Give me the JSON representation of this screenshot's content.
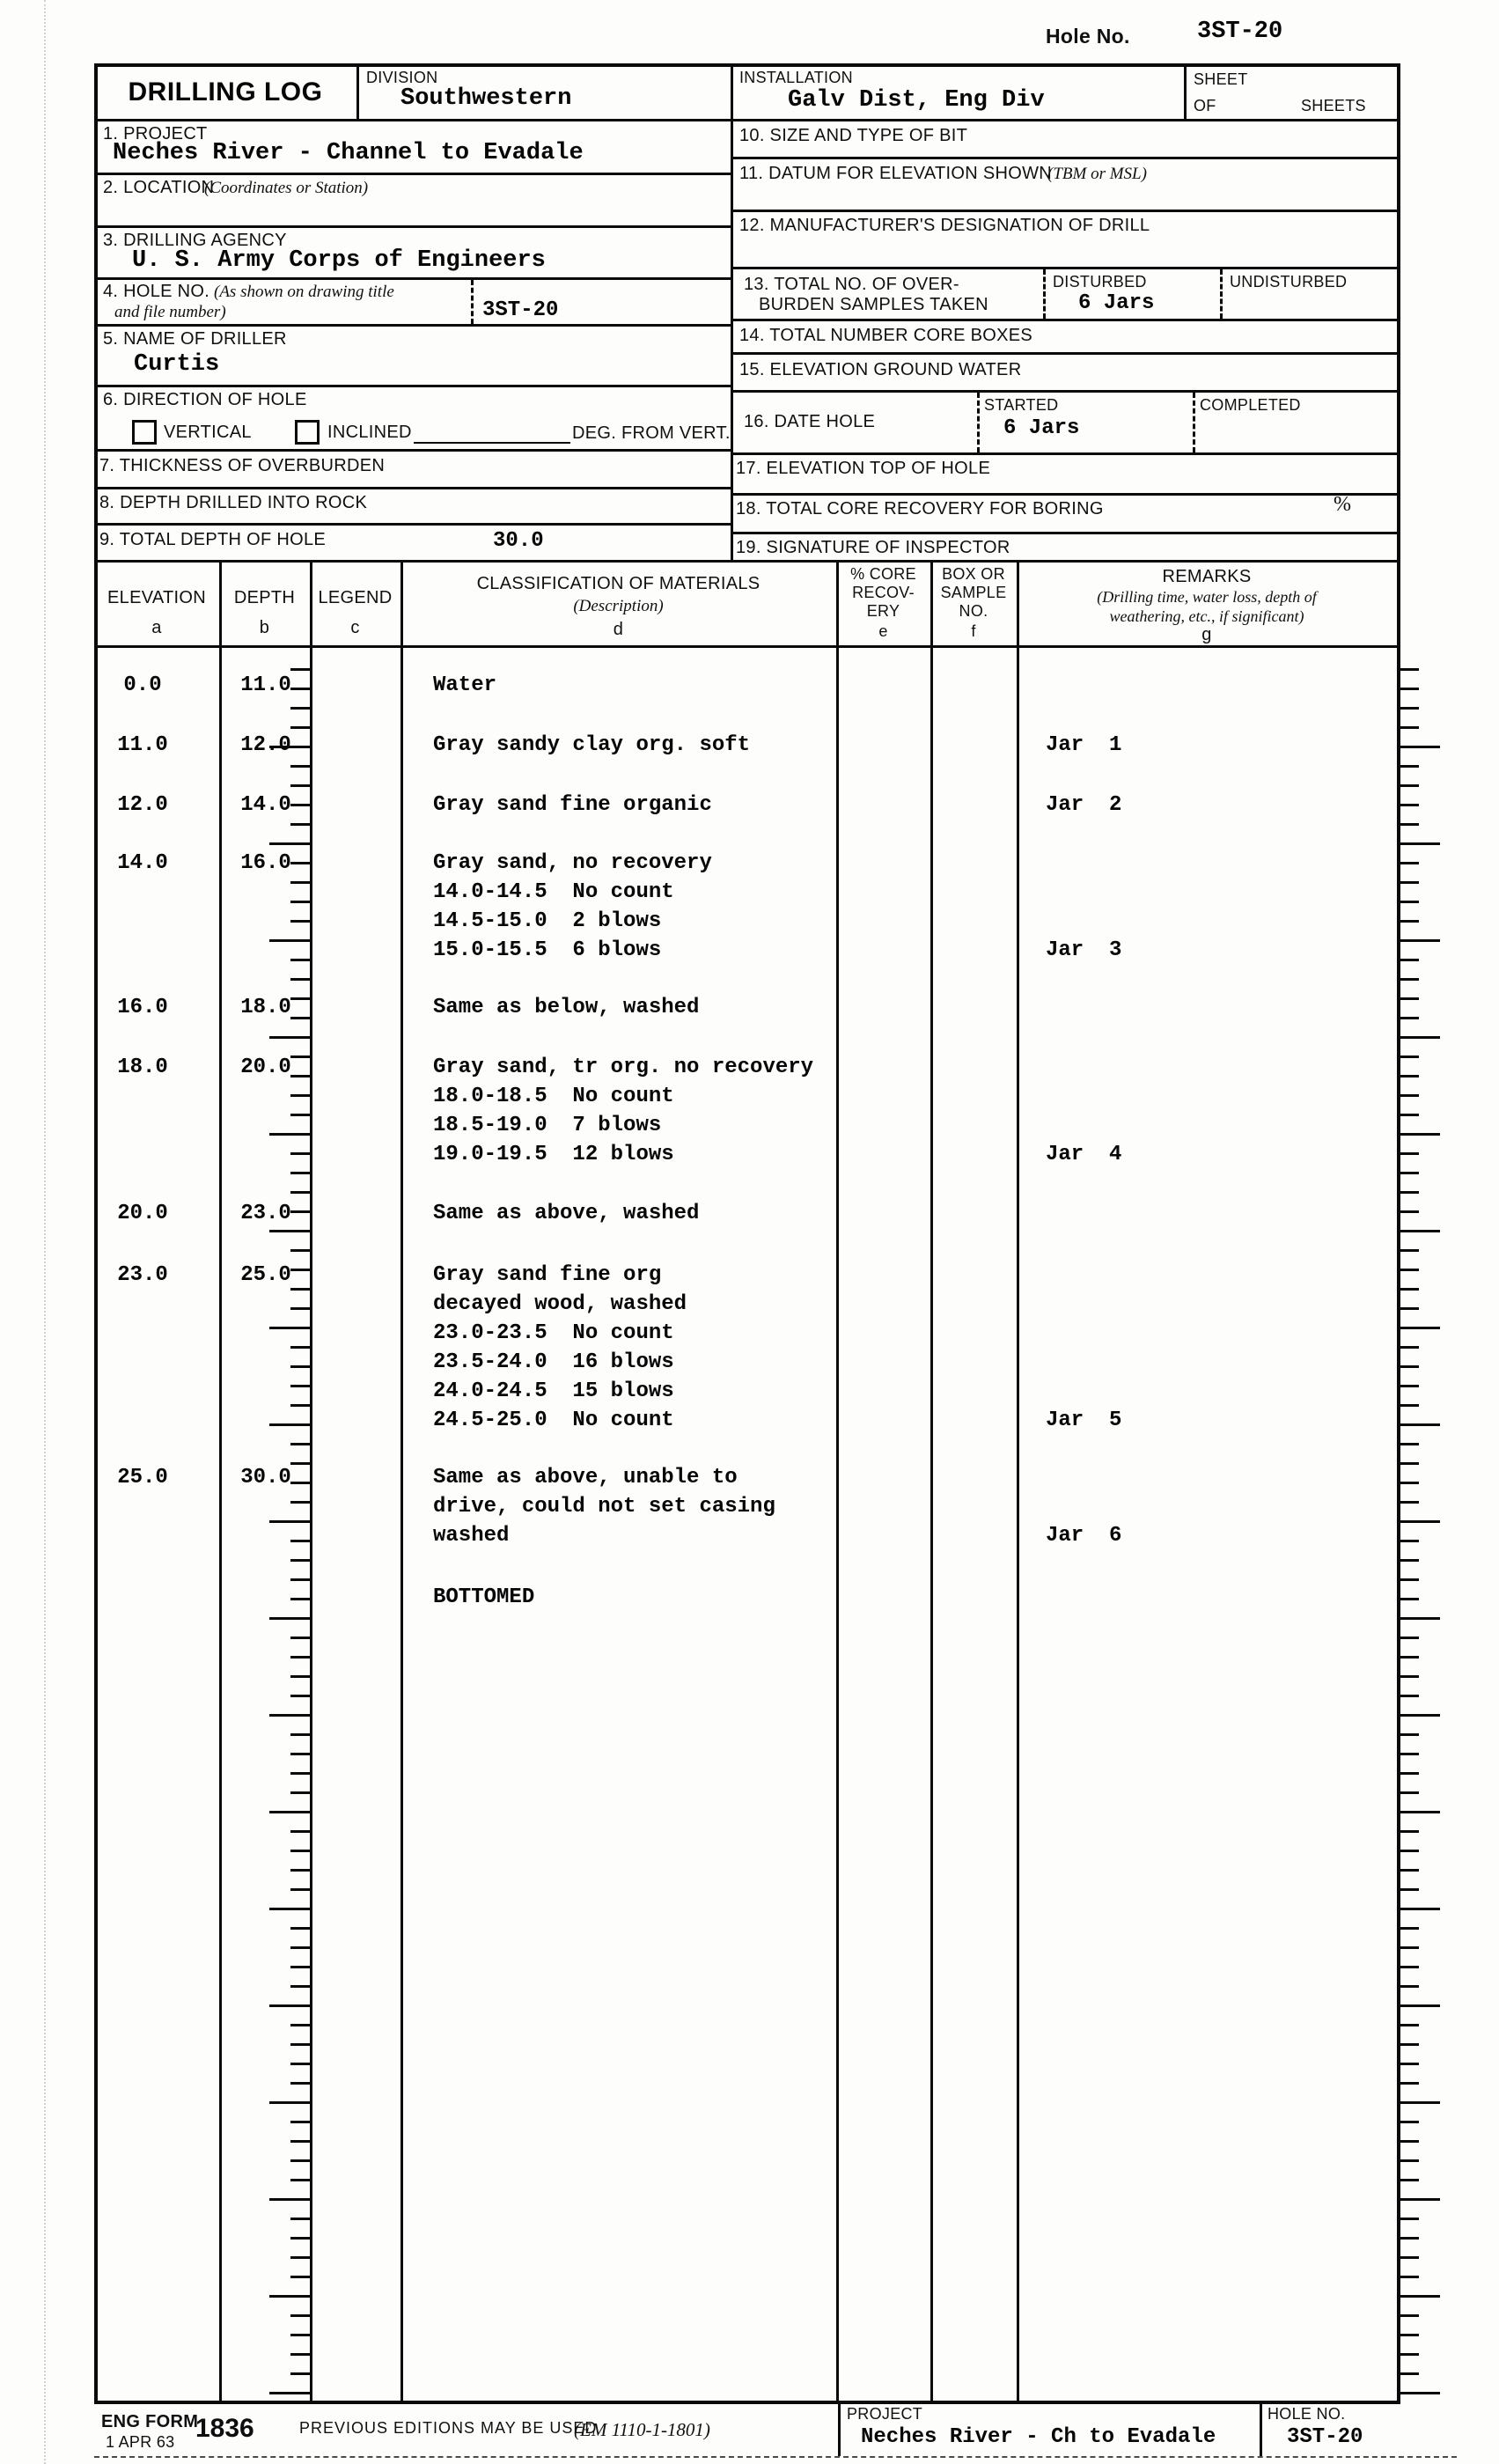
{
  "page": {
    "hole_no_label": "Hole No.",
    "hole_no": "3ST-20"
  },
  "header": {
    "form_title": "DRILLING LOG",
    "division_label": "DIVISION",
    "division": "Southwestern",
    "installation_label": "INSTALLATION",
    "installation": "Galv Dist, Eng Div",
    "sheet_label": "SHEET",
    "of_label": "OF",
    "sheets_label": "SHEETS"
  },
  "fields": {
    "project": {
      "label": "1. PROJECT",
      "value": "Neches River - Channel to Evadale"
    },
    "location": {
      "label": "2. LOCATION",
      "hint": "(Coordinates or Station)"
    },
    "agency": {
      "label": "3. DRILLING AGENCY",
      "value": "U. S. Army Corps of Engineers"
    },
    "hole": {
      "label": "4. HOLE NO.",
      "hint1": "(As shown on drawing title",
      "hint2": "and file number)",
      "value": "3ST-20"
    },
    "driller": {
      "label": "5. NAME OF DRILLER",
      "value": "Curtis"
    },
    "direction": {
      "label": "6. DIRECTION OF HOLE",
      "vertical": "VERTICAL",
      "inclined": "INCLINED",
      "deg": "DEG. FROM VERT."
    },
    "overburden": {
      "label": "7. THICKNESS OF OVERBURDEN"
    },
    "rock": {
      "label": "8. DEPTH DRILLED INTO ROCK"
    },
    "total_depth": {
      "label": "9. TOTAL DEPTH OF HOLE",
      "value": "30.0"
    },
    "bit": {
      "label": "10. SIZE AND TYPE OF BIT"
    },
    "datum": {
      "label": "11. DATUM FOR ELEVATION SHOWN",
      "hint": "(TBM or MSL)"
    },
    "drill": {
      "label": "12. MANUFACTURER'S DESIGNATION OF DRILL"
    },
    "samples": {
      "label1": "13. TOTAL NO. OF OVER-",
      "label2": "BURDEN SAMPLES TAKEN",
      "disturbed_label": "DISTURBED",
      "disturbed_value": "6 Jars",
      "undisturbed_label": "UNDISTURBED"
    },
    "core_boxes": {
      "label": "14. TOTAL NUMBER CORE BOXES"
    },
    "ground_water": {
      "label": "15. ELEVATION GROUND WATER"
    },
    "date_hole": {
      "label": "16. DATE HOLE",
      "started_label": "STARTED",
      "started_value": "6 Jars",
      "completed_label": "COMPLETED"
    },
    "top_of_hole": {
      "label": "17. ELEVATION TOP OF HOLE"
    },
    "recovery": {
      "label": "18. TOTAL CORE RECOVERY FOR BORING",
      "percent": "%"
    },
    "inspector": {
      "label": "19. SIGNATURE OF INSPECTOR"
    }
  },
  "table": {
    "col_elevation": {
      "label": "ELEVATION",
      "letter": "a"
    },
    "col_depth": {
      "label": "DEPTH",
      "letter": "b"
    },
    "col_legend": {
      "label": "LEGEND",
      "letter": "c"
    },
    "col_classification": {
      "label": "CLASSIFICATION OF MATERIALS",
      "hint": "(Description)",
      "letter": "d"
    },
    "col_core": {
      "line1": "% CORE",
      "line2": "RECOV-",
      "line3": "ERY",
      "letter": "e"
    },
    "col_box": {
      "line1": "BOX OR",
      "line2": "SAMPLE",
      "line3": "NO.",
      "letter": "f"
    },
    "col_remarks": {
      "label": "REMARKS",
      "hint1": "(Drilling time, water loss, depth of",
      "hint2": "weathering, etc., if significant)",
      "letter": "g"
    },
    "rows": [
      {
        "elevation": "0.0",
        "depth": "11.0",
        "lines": [
          "Water"
        ],
        "jar": ""
      },
      {
        "elevation": "11.0",
        "depth": "12.0",
        "lines": [
          "Gray sandy clay org. soft"
        ],
        "jar": "Jar  1"
      },
      {
        "elevation": "12.0",
        "depth": "14.0",
        "lines": [
          "Gray sand fine organic"
        ],
        "jar": "Jar  2"
      },
      {
        "elevation": "14.0",
        "depth": "16.0",
        "lines": [
          "Gray sand, no recovery",
          "14.0-14.5  No count",
          "14.5-15.0  2 blows",
          "15.0-15.5  6 blows"
        ],
        "jar": "Jar  3"
      },
      {
        "elevation": "16.0",
        "depth": "18.0",
        "lines": [
          "Same as below, washed"
        ],
        "jar": ""
      },
      {
        "elevation": "18.0",
        "depth": "20.0",
        "lines": [
          "Gray sand, tr org. no recovery",
          "18.0-18.5  No count",
          "18.5-19.0  7 blows",
          "19.0-19.5  12 blows"
        ],
        "jar": "Jar  4"
      },
      {
        "elevation": "20.0",
        "depth": "23.0",
        "lines": [
          "Same as above, washed"
        ],
        "jar": ""
      },
      {
        "elevation": "23.0",
        "depth": "25.0",
        "lines": [
          "Gray sand fine org",
          "decayed wood, washed",
          "23.0-23.5  No count",
          "23.5-24.0  16 blows",
          "24.0-24.5  15 blows",
          "24.5-25.0  No count"
        ],
        "jar": "Jar  5"
      },
      {
        "elevation": "25.0",
        "depth": "30.0",
        "lines": [
          "Same as above, unable to",
          "drive, could not set casing",
          "washed"
        ],
        "jar": "Jar  6"
      },
      {
        "elevation": "",
        "depth": "",
        "lines": [
          "BOTTOMED"
        ],
        "jar": ""
      }
    ]
  },
  "footer": {
    "eng_form": "ENG FORM",
    "date": "1 APR 63",
    "form_no": "1836",
    "previous": "PREVIOUS EDITIONS MAY BE USED",
    "em": "(EM 1110-1-1801)",
    "project_label": "PROJECT",
    "project_value": "Neches River - Ch to Evadale",
    "hole_label": "HOLE NO.",
    "hole_value": "3ST-20"
  }
}
